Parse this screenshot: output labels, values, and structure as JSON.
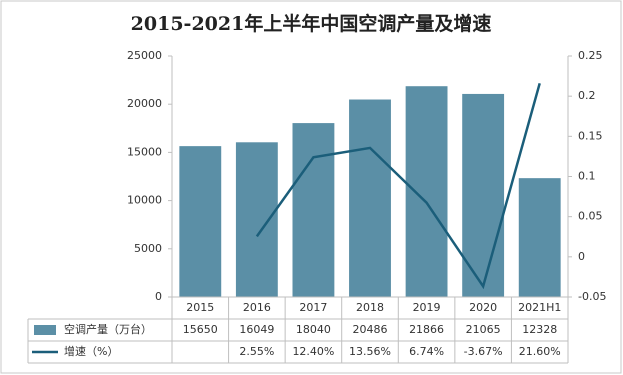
{
  "chart_data": {
    "type": "bar",
    "title": "2015-2021年上半年中国空调产量及增速",
    "categories": [
      "2015",
      "2016",
      "2017",
      "2018",
      "2019",
      "2020",
      "2021H1"
    ],
    "series": [
      {
        "name": "空调产量（万台）",
        "type": "bar",
        "color": "#5b8fa6",
        "values": [
          15650,
          16049,
          18040,
          20486,
          21866,
          21065,
          12328
        ]
      },
      {
        "name": "增速（%）",
        "type": "line",
        "axis": "y2",
        "color": "#1b5e7a",
        "values": [
          null,
          0.0255,
          0.124,
          0.1356,
          0.0674,
          -0.0367,
          0.216
        ],
        "value_labels": [
          null,
          "2.55%",
          "12.40%",
          "13.56%",
          "6.74%",
          "-3.67%",
          "21.60%"
        ]
      }
    ],
    "ylim": [
      0,
      25000
    ],
    "yticks": [
      0,
      5000,
      10000,
      15000,
      20000,
      25000
    ],
    "y2lim": [
      -0.05,
      0.25
    ],
    "y2ticks": [
      -0.05,
      0,
      0.05,
      0.1,
      0.15,
      0.2,
      0.25
    ],
    "data_table": true
  }
}
